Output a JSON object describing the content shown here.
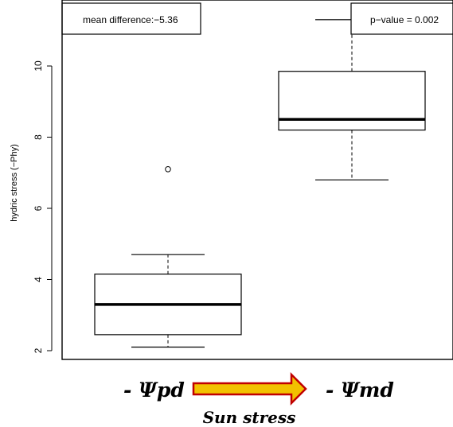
{
  "chart_data": {
    "type": "boxplot",
    "ylabel": "hydric stress (−Phy)",
    "ylim": [
      1.8,
      11.6
    ],
    "yticks": [
      "2",
      "4",
      "6",
      "8",
      "10"
    ],
    "groups": [
      {
        "label": "- Ψpd",
        "min": 2.1,
        "q1": 2.45,
        "median": 3.3,
        "q3": 4.15,
        "max": 4.7,
        "outliers": [
          7.1
        ]
      },
      {
        "label": "- Ψmd",
        "min": 6.8,
        "q1": 8.2,
        "median": 8.5,
        "q3": 9.85,
        "max": 11.3,
        "outliers": []
      }
    ],
    "annotations": {
      "left": "mean difference:−5.36",
      "right": "p−value = 0.002"
    },
    "arrow_label": "Sun stress",
    "colors": {
      "arrow_fill": "#f2c200",
      "arrow_stroke": "#c00000",
      "box": "#000000"
    },
    "grid": false
  }
}
